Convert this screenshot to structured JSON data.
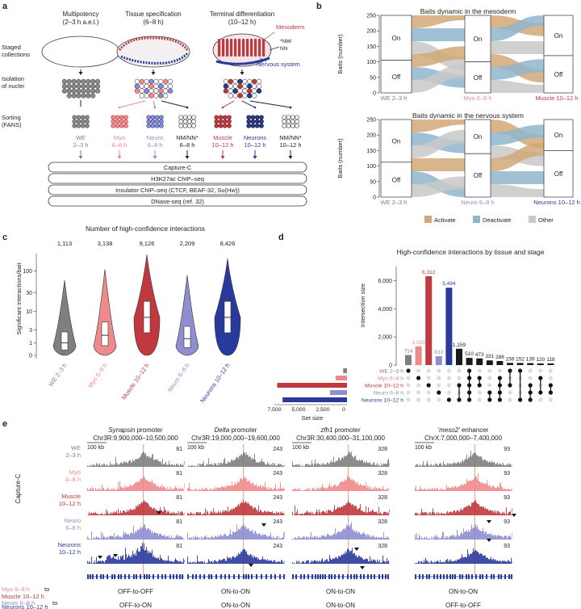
{
  "colors": {
    "we": "#7f7f7f",
    "myo": "#ef8a8c",
    "muscle": "#c0393f",
    "neuro": "#8e8ed0",
    "neurons": "#2a3a9c",
    "other": "#1a1a1a",
    "activate": "#d2a878",
    "deactivate": "#8fb5cc",
    "other_flow": "#c8c8c8"
  },
  "panel_a": {
    "letter": "a",
    "stages": [
      {
        "title": "Multipotency",
        "sub": "(2–3 h a.e.l.)"
      },
      {
        "title": "Tissue specification",
        "sub": "(6–8 h)"
      },
      {
        "title": "Terminal differentiation",
        "sub": "(10–12 h)"
      }
    ],
    "row_labels": [
      "Staged collections",
      "Isolation of nuclei",
      "Sorting (FANS)"
    ],
    "embryo_labels": {
      "mesoderm": "Mesoderm",
      "nm": "*NM/ NN",
      "nervous": "Nervous system"
    },
    "sorted": [
      {
        "l1": "WE",
        "l2": "2–3 h"
      },
      {
        "l1": "Myo",
        "l2": "6–8 h"
      },
      {
        "l1": "Neuro",
        "l2": "6–8 h"
      },
      {
        "l1": "NM/NN*",
        "l2": "6–8 h"
      },
      {
        "l1": "Muscle",
        "l2": "10–12 h"
      },
      {
        "l1": "Neurons",
        "l2": "10–12 h"
      },
      {
        "l1": "NM/NN*",
        "l2": "10–12 h"
      }
    ],
    "assays": [
      "Capture-C",
      "H3K27ac ChIP–seq",
      "Insulator ChIP–seq (CTCF, BEAF-32, Su(Hw))",
      "DNase-seq (ref. 32)"
    ]
  },
  "panel_b": {
    "letter": "b",
    "charts": [
      {
        "title": "Baits dynamic in the mesoderm",
        "stages": [
          "WE 2–3 h",
          "Myo 6–8 h",
          "Muscle 10–12 h"
        ]
      },
      {
        "title": "Baits dynamic in the nervous system",
        "stages": [
          "WE 2–3 h",
          "Neuro 6–8 h",
          "Neurons 10–12 h"
        ]
      }
    ],
    "ylabel": "Baits (number)",
    "yticks": [
      "0",
      "50",
      "100",
      "150",
      "200",
      "250"
    ],
    "on": "On",
    "off": "Off",
    "legend": [
      "Activate",
      "Deactivate",
      "Other"
    ]
  },
  "chart_data": [
    {
      "type": "violin",
      "panel": "c",
      "title": "Number of high-confidence interactions",
      "ylabel": "Significant interactions/bait",
      "yticks": [
        "0",
        "1",
        "3",
        "10",
        "30",
        "100"
      ],
      "categories": [
        "WE 2–3 h",
        "Myo 6–8 h",
        "Muscle 10–12 h",
        "Neuro 6–8 h",
        "Neurons 10–12 h"
      ],
      "counts": [
        "1,113",
        "3,138",
        "9,126",
        "2,209",
        "8,426"
      ],
      "medians": [
        1,
        2,
        7,
        1.5,
        7
      ]
    },
    {
      "type": "upset",
      "panel": "d",
      "title": "High-confidence interactions by tissue and stage",
      "ylabel": "Intersection size",
      "yticks": [
        "0",
        "2,000",
        "4,000",
        "6,000"
      ],
      "intersections": [
        714,
        1333,
        6312,
        633,
        5494,
        1159,
        510,
        473,
        331,
        288,
        156,
        152,
        139,
        120,
        118
      ],
      "intersection_labels": [
        "714",
        "1,333",
        "6,312",
        "633",
        "5,494",
        "1,159",
        "510",
        "473",
        "331",
        "288",
        "156",
        "152",
        "139",
        "120",
        "118"
      ],
      "sets": [
        "WE 2–3 h",
        "Myo 6–8 h",
        "Muscle 10–12 h",
        "Neuro 6–8 h",
        "Neurons 10–12 h"
      ],
      "set_size_label": "Set size",
      "set_size_ticks": [
        "7,500",
        "5,000",
        "2,500",
        "0"
      ]
    }
  ],
  "panel_e": {
    "letter": "e",
    "ylabel": "Capture-C",
    "scale": "100 kb",
    "loci": [
      {
        "name": "Synapsin",
        "suffix": " promoter",
        "coord": "Chr3R:9,900,000–10,500,000",
        "max": "81",
        "c1": "OFF-to-OFF",
        "c2": "OFF-to-ON"
      },
      {
        "name": "Delta",
        "suffix": " promoter",
        "coord": "Chr3R:19,000,000–19,600,000",
        "max": "243",
        "c1": "ON-to-ON",
        "c2": "ON-to-ON"
      },
      {
        "name": "zfh1",
        "suffix": " promoter",
        "coord": "Chr3R:30,400,000–31,100,000",
        "max": "328",
        "c1": "ON-to-ON",
        "c2": "ON-to-ON"
      },
      {
        "name": "'meso2'",
        "suffix": " enhancer",
        "coord": "ChrX:7,000,000–7,400,000",
        "max": "93",
        "c1": "ON-to-ON",
        "c2": "OFF-to-OFF"
      }
    ],
    "tracks": [
      {
        "l1": "WE",
        "l2": "2–3 h"
      },
      {
        "l1": "Myo",
        "l2": "6–8 h"
      },
      {
        "l1": "Muscle",
        "l2": "10–12 h"
      },
      {
        "l1": "Neuro",
        "l2": "6–8 h"
      },
      {
        "l1": "Neurons",
        "l2": "10–12 h"
      }
    ],
    "comp1": {
      "a": "Myo 6–8 h",
      "to": " to",
      "b": "Muscle 10–12 h"
    },
    "comp2": {
      "a": "Neuro 6–8 h",
      "to": " to",
      "b": "Neurons 10–12 h"
    }
  }
}
